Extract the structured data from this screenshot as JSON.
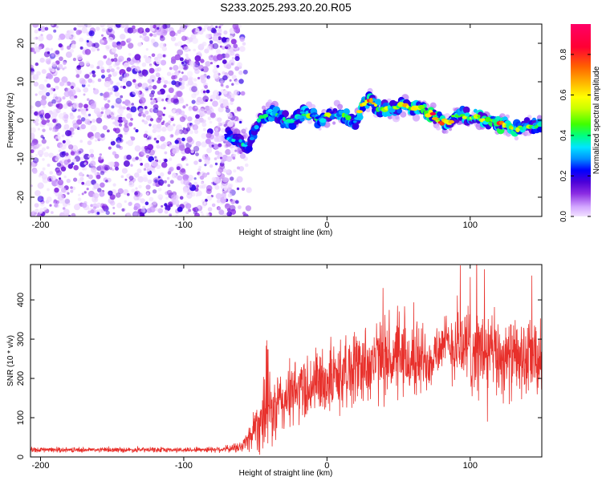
{
  "title": "S233.2025.293.20.20.R05",
  "chart_data": [
    {
      "type": "heatmap",
      "name": "spectrogram",
      "xlabel": "Height of straight line (km)",
      "ylabel": "Frequency (Hz)",
      "xlim": [
        -207,
        150
      ],
      "ylim": [
        -25,
        25
      ],
      "xticks": [
        -200,
        -100,
        0,
        100
      ],
      "yticks": [
        -20,
        -10,
        0,
        10,
        20
      ],
      "colorbar": {
        "label": "Normalized spectral amplitude",
        "range": [
          0,
          0.95
        ],
        "ticks": [
          "0.0",
          "0.2",
          "0.4",
          "0.6",
          "0.8"
        ],
        "tick_values": [
          0,
          0.2,
          0.4,
          0.6,
          0.8
        ],
        "colors": [
          "#f2e2ff",
          "#d3a7ff",
          "#8a2be2",
          "#4b00d8",
          "#0000ff",
          "#0090ff",
          "#00e5ff",
          "#00ff7f",
          "#40ff00",
          "#c8ff00",
          "#ffff00",
          "#ffb000",
          "#ff6000",
          "#ff0033",
          "#ff0066"
        ],
        "color_stops": [
          0,
          0.05,
          0.12,
          0.18,
          0.24,
          0.3,
          0.36,
          0.42,
          0.48,
          0.56,
          0.62,
          0.7,
          0.78,
          0.88,
          1
        ]
      },
      "noise_region_x": [
        -207,
        -60
      ],
      "signal_track": {
        "x": [
          -70,
          -64,
          -60,
          -57,
          -54,
          -50,
          -45,
          -40,
          -35,
          -30,
          -25,
          -20,
          -15,
          -10,
          -5,
          0,
          5,
          10,
          15,
          20,
          25,
          30,
          35,
          40,
          45,
          50,
          55,
          60,
          65,
          70,
          75,
          80,
          85,
          90,
          95,
          100,
          105,
          110,
          115,
          120,
          125,
          130,
          135,
          140,
          145,
          150
        ],
        "y": [
          -4,
          -5,
          -6,
          -7,
          -6,
          -2,
          1,
          2,
          1.5,
          0,
          -0.5,
          1,
          2,
          1.5,
          0,
          1,
          1.5,
          2,
          0,
          -1,
          4,
          6,
          3,
          3,
          2.5,
          3.5,
          4,
          3,
          3.5,
          2,
          1,
          -0.5,
          -0.5,
          1,
          1.5,
          0.5,
          1,
          0,
          -0.5,
          -1,
          -1,
          -2,
          -2,
          -1.5,
          -1.5,
          -1.5
        ],
        "peak_amplitude": [
          0.35,
          0.4,
          0.45,
          0.4,
          0.3,
          0.35,
          0.45,
          0.5,
          0.45,
          0.4,
          0.45,
          0.5,
          0.55,
          0.5,
          0.5,
          0.6,
          0.55,
          0.6,
          0.5,
          0.5,
          0.75,
          0.8,
          0.55,
          0.6,
          0.65,
          0.7,
          0.7,
          0.75,
          0.8,
          0.85,
          0.9,
          0.8,
          0.7,
          0.6,
          0.6,
          0.65,
          0.7,
          0.75,
          0.8,
          0.85,
          0.75,
          0.7,
          0.65,
          0.6,
          0.55,
          0.5
        ]
      }
    },
    {
      "type": "line",
      "name": "snr",
      "xlabel": "Height of straight line (km)",
      "ylabel": "SNR (10 * v/v)",
      "xlim": [
        -207,
        150
      ],
      "ylim": [
        0,
        490
      ],
      "xticks": [
        -200,
        -100,
        0,
        100
      ],
      "yticks": [
        0,
        100,
        200,
        300,
        400
      ],
      "color": "#e8302b",
      "envelope": {
        "x": [
          -207,
          -150,
          -100,
          -70,
          -60,
          -55,
          -50,
          -45,
          -42,
          -38,
          -35,
          -30,
          -25,
          -20,
          -10,
          0,
          10,
          20,
          30,
          40,
          50,
          60,
          70,
          80,
          90,
          100,
          110,
          120,
          130,
          140,
          150
        ],
        "mean": [
          18,
          18,
          18,
          20,
          25,
          45,
          80,
          100,
          140,
          110,
          125,
          145,
          155,
          170,
          185,
          195,
          210,
          230,
          240,
          250,
          245,
          245,
          250,
          285,
          285,
          275,
          265,
          255,
          250,
          245,
          245
        ],
        "spread": [
          6,
          6,
          6,
          8,
          15,
          30,
          60,
          90,
          130,
          80,
          90,
          80,
          80,
          85,
          85,
          85,
          90,
          95,
          100,
          100,
          95,
          95,
          90,
          60,
          100,
          110,
          110,
          100,
          95,
          95,
          95
        ]
      },
      "peaks": [
        {
          "x": -42,
          "y": 297
        },
        {
          "x": 93,
          "y": 488
        },
        {
          "x": 110,
          "y": 478
        },
        {
          "x": 100,
          "y": 458
        },
        {
          "x": 143,
          "y": 462
        },
        {
          "x": 112,
          "y": 90
        },
        {
          "x": 38,
          "y": 335
        }
      ]
    }
  ]
}
